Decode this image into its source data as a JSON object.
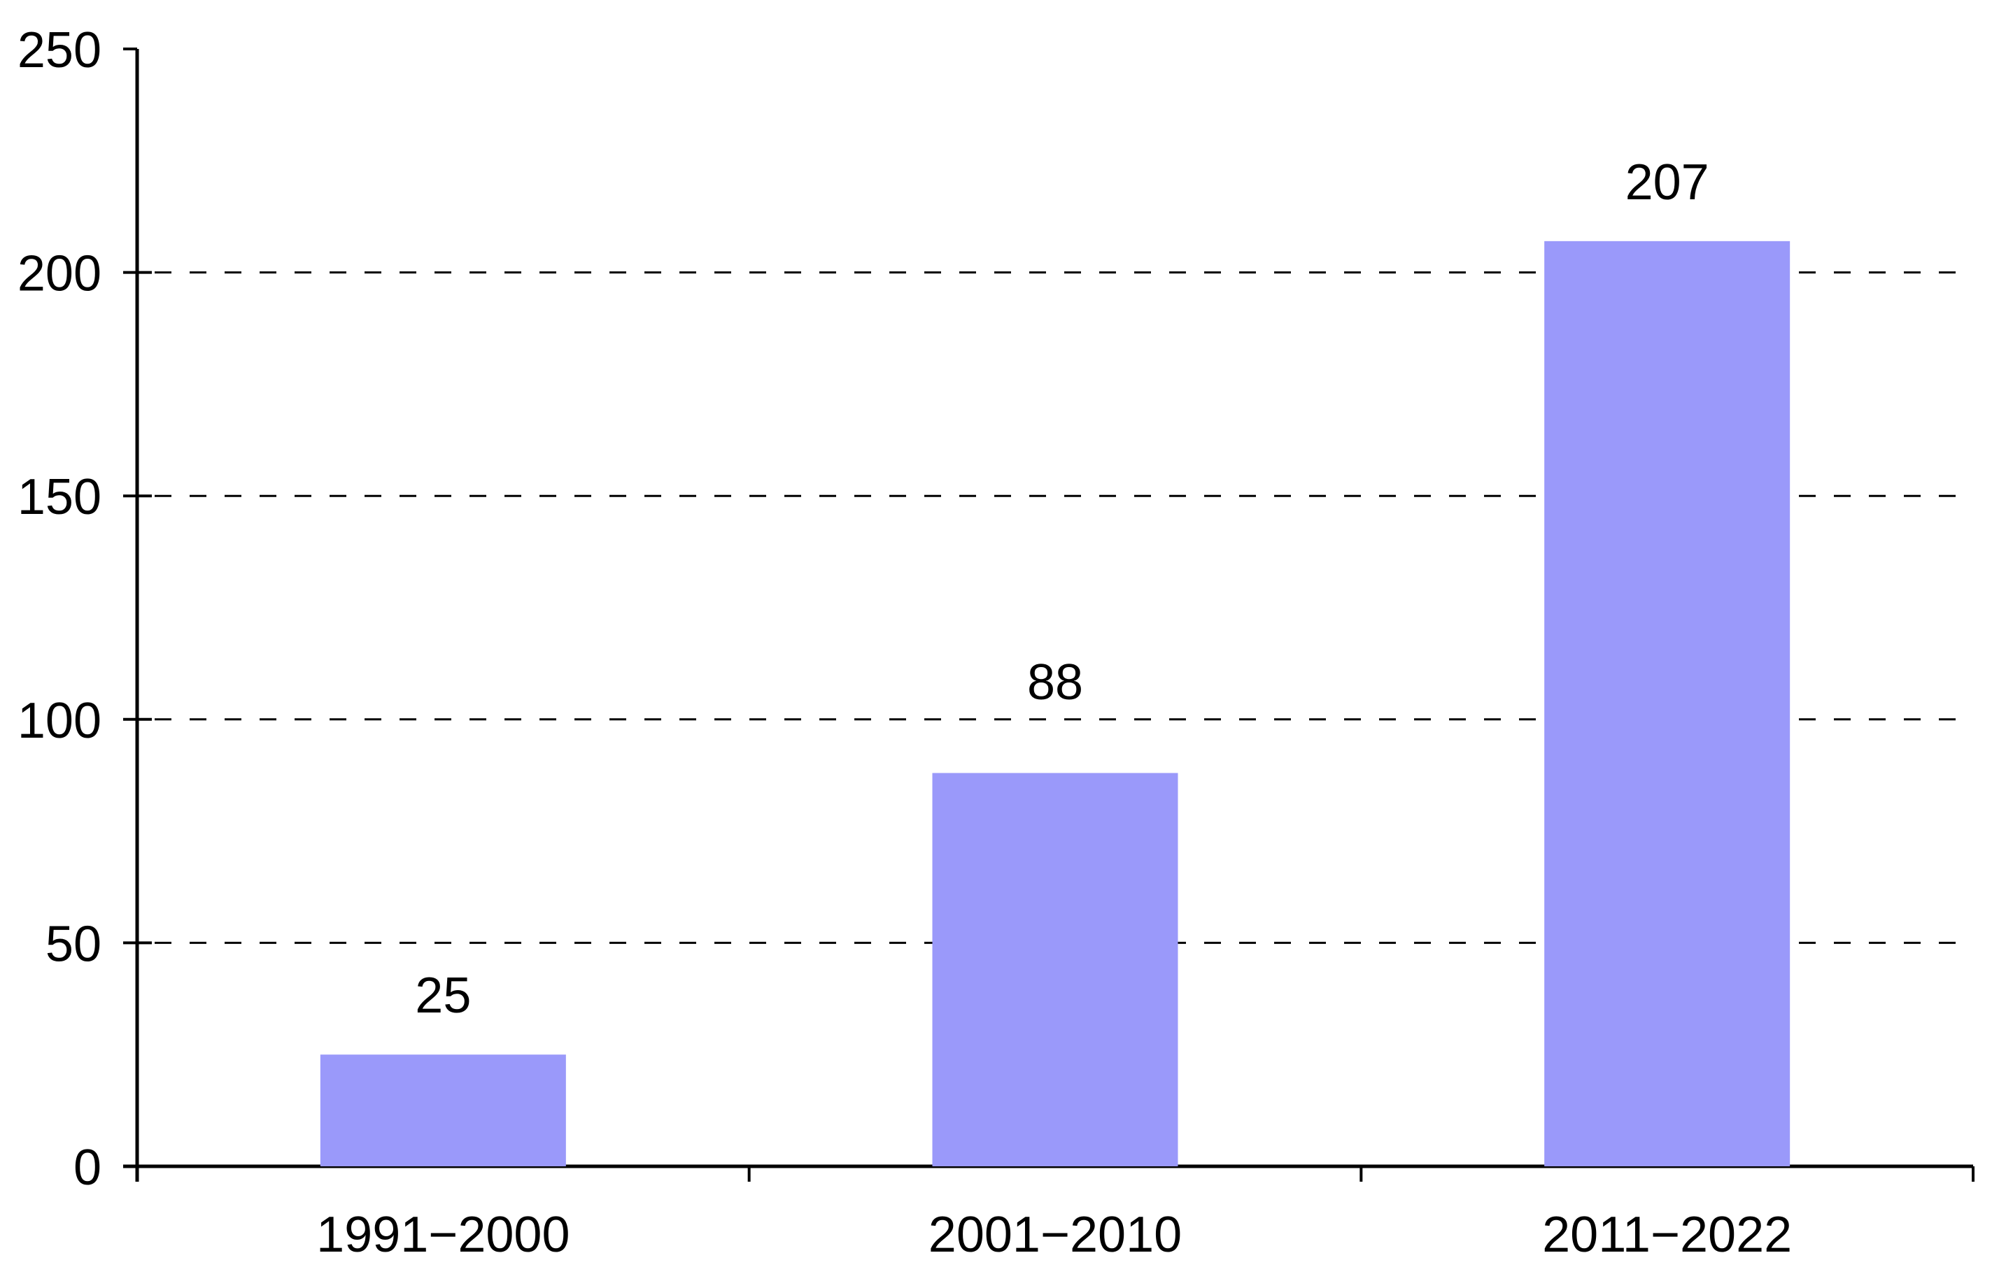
{
  "chart_data": {
    "type": "bar",
    "title": "",
    "xlabel": "",
    "ylabel": "",
    "categories": [
      "1991−2000",
      "2001−2010",
      "2011−2022"
    ],
    "values": [
      25,
      88,
      207
    ],
    "data_labels": [
      "25",
      "88",
      "207"
    ],
    "ylim": [
      0,
      250
    ],
    "yticks": [
      0,
      50,
      100,
      150,
      200,
      250
    ],
    "ytick_labels": [
      "0",
      "50",
      "100",
      "150",
      "200",
      "250"
    ],
    "gridlines": [
      50,
      100,
      150,
      200
    ],
    "grid_style": "dashed",
    "legend_position": "none",
    "bar_color": "#9a99fa",
    "axis_color": "#000000",
    "text_color": "#000000",
    "background_color": "#ffffff"
  }
}
